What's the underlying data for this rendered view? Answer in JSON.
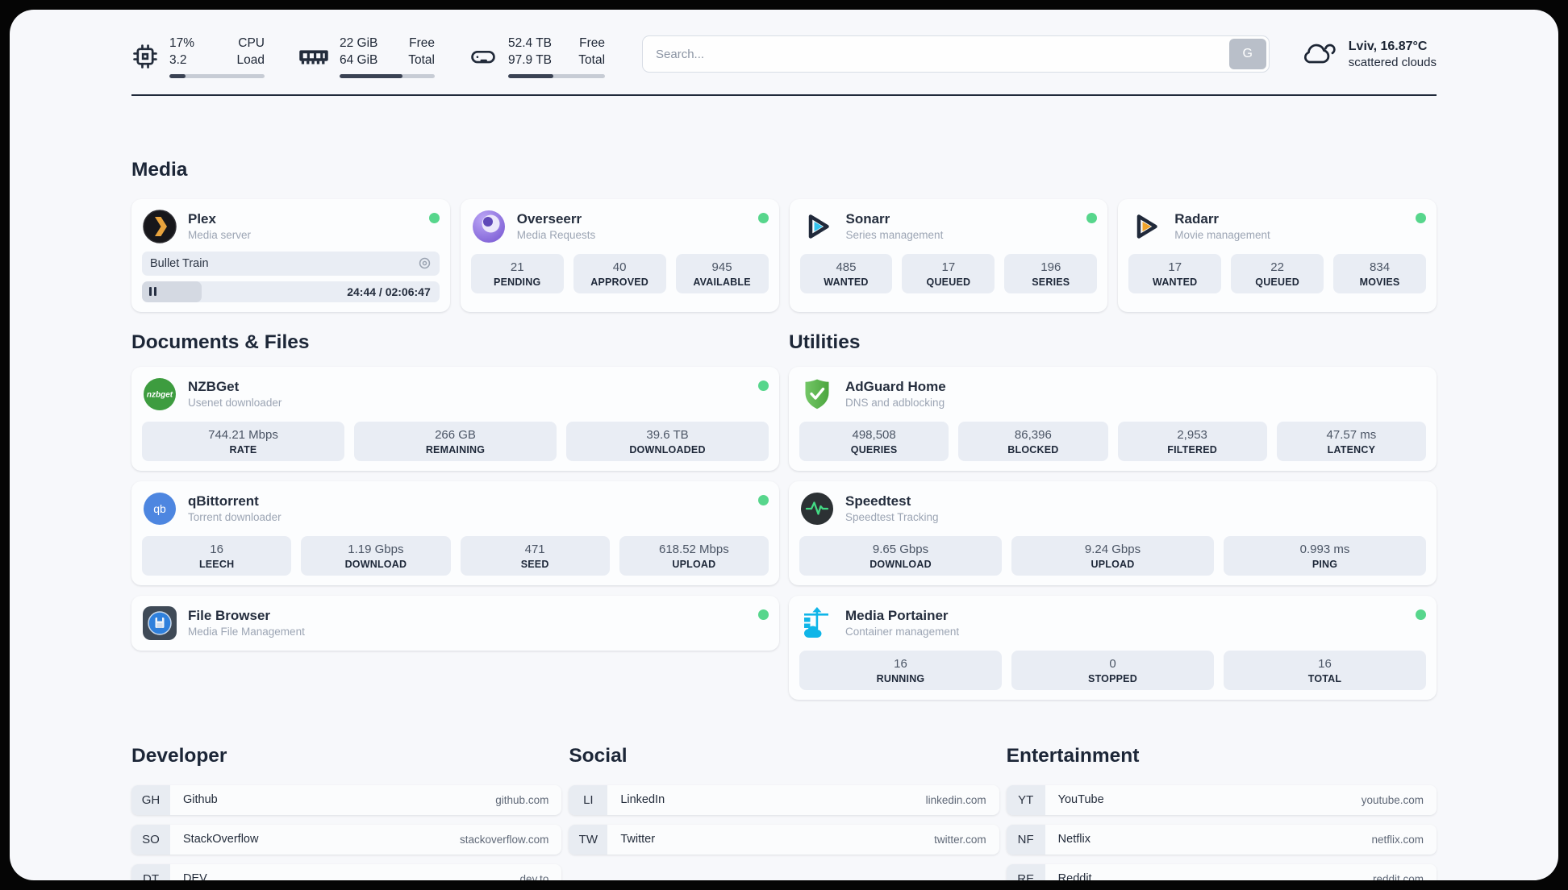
{
  "page": {
    "background": "#f7f8fb",
    "frame_color": "#050505",
    "accent_green": "#57d68c"
  },
  "header": {
    "system_stats": [
      {
        "icon": "cpu-icon",
        "value_top": "17%",
        "value_bottom": "3.2",
        "label_top": "CPU",
        "label_bottom": "Load",
        "progress_percent": 17
      },
      {
        "icon": "memory-icon",
        "value_top": "22 GiB",
        "value_bottom": "64 GiB",
        "label_top": "Free",
        "label_bottom": "Total",
        "progress_percent": 66
      },
      {
        "icon": "disk-icon",
        "value_top": "52.4 TB",
        "value_bottom": "97.9 TB",
        "label_top": "Free",
        "label_bottom": "Total",
        "progress_percent": 47
      }
    ],
    "search": {
      "placeholder": "Search...",
      "button_label": "G"
    },
    "weather": {
      "icon": "cloud-icon",
      "line1": "Lviv, 16.87°C",
      "line2": "scattered clouds"
    }
  },
  "sections": {
    "media": {
      "title": "Media",
      "apps": [
        {
          "name": "Plex",
          "description": "Media server",
          "icon": "plex-icon",
          "status_dot": true,
          "player": {
            "now_playing": "Bullet Train",
            "elapsed": "24:44",
            "duration": "02:06:47",
            "time_display": "24:44 / 02:06:47",
            "progress_percent": 20
          }
        },
        {
          "name": "Overseerr",
          "description": "Media Requests",
          "icon": "overseerr-icon",
          "status_dot": true,
          "stats": [
            {
              "value": "21",
              "label": "PENDING"
            },
            {
              "value": "40",
              "label": "APPROVED"
            },
            {
              "value": "945",
              "label": "AVAILABLE"
            }
          ]
        },
        {
          "name": "Sonarr",
          "description": "Series management",
          "icon": "sonarr-icon",
          "status_dot": true,
          "stats": [
            {
              "value": "485",
              "label": "WANTED"
            },
            {
              "value": "17",
              "label": "QUEUED"
            },
            {
              "value": "196",
              "label": "SERIES"
            }
          ]
        },
        {
          "name": "Radarr",
          "description": "Movie management",
          "icon": "radarr-icon",
          "status_dot": true,
          "stats": [
            {
              "value": "17",
              "label": "WANTED"
            },
            {
              "value": "22",
              "label": "QUEUED"
            },
            {
              "value": "834",
              "label": "MOVIES"
            }
          ]
        }
      ]
    },
    "documents": {
      "title": "Documents & Files",
      "apps": [
        {
          "name": "NZBGet",
          "description": "Usenet downloader",
          "icon": "nzbget-icon",
          "status_dot": true,
          "stats": [
            {
              "value": "744.21 Mbps",
              "label": "RATE"
            },
            {
              "value": "266 GB",
              "label": "REMAINING"
            },
            {
              "value": "39.6 TB",
              "label": "DOWNLOADED"
            }
          ]
        },
        {
          "name": "qBittorrent",
          "description": "Torrent downloader",
          "icon": "qbittorrent-icon",
          "status_dot": true,
          "stats": [
            {
              "value": "16",
              "label": "LEECH"
            },
            {
              "value": "1.19 Gbps",
              "label": "DOWNLOAD"
            },
            {
              "value": "471",
              "label": "SEED"
            },
            {
              "value": "618.52 Mbps",
              "label": "UPLOAD"
            }
          ]
        },
        {
          "name": "File Browser",
          "description": "Media File Management",
          "icon": "filebrowser-icon",
          "status_dot": true
        }
      ]
    },
    "utilities": {
      "title": "Utilities",
      "apps": [
        {
          "name": "AdGuard Home",
          "description": "DNS and adblocking",
          "icon": "adguard-icon",
          "status_dot": false,
          "stats": [
            {
              "value": "498,508",
              "label": "QUERIES"
            },
            {
              "value": "86,396",
              "label": "BLOCKED"
            },
            {
              "value": "2,953",
              "label": "FILTERED"
            },
            {
              "value": "47.57 ms",
              "label": "LATENCY"
            }
          ]
        },
        {
          "name": "Speedtest",
          "description": "Speedtest Tracking",
          "icon": "speedtest-icon",
          "status_dot": false,
          "stats": [
            {
              "value": "9.65 Gbps",
              "label": "DOWNLOAD"
            },
            {
              "value": "9.24 Gbps",
              "label": "UPLOAD"
            },
            {
              "value": "0.993 ms",
              "label": "PING"
            }
          ]
        },
        {
          "name": "Media Portainer",
          "description": "Container management",
          "icon": "portainer-icon",
          "status_dot": true,
          "stats": [
            {
              "value": "16",
              "label": "RUNNING"
            },
            {
              "value": "0",
              "label": "STOPPED"
            },
            {
              "value": "16",
              "label": "TOTAL"
            }
          ]
        }
      ]
    }
  },
  "link_sections": [
    {
      "title": "Developer",
      "items": [
        {
          "abbr": "GH",
          "name": "Github",
          "url": "github.com"
        },
        {
          "abbr": "SO",
          "name": "StackOverflow",
          "url": "stackoverflow.com"
        },
        {
          "abbr": "DT",
          "name": "DEV",
          "url": "dev.to"
        }
      ]
    },
    {
      "title": "Social",
      "items": [
        {
          "abbr": "LI",
          "name": "LinkedIn",
          "url": "linkedin.com"
        },
        {
          "abbr": "TW",
          "name": "Twitter",
          "url": "twitter.com"
        }
      ]
    },
    {
      "title": "Entertainment",
      "items": [
        {
          "abbr": "YT",
          "name": "YouTube",
          "url": "youtube.com"
        },
        {
          "abbr": "NF",
          "name": "Netflix",
          "url": "netflix.com"
        },
        {
          "abbr": "RE",
          "name": "Reddit",
          "url": "reddit.com"
        }
      ]
    }
  ]
}
